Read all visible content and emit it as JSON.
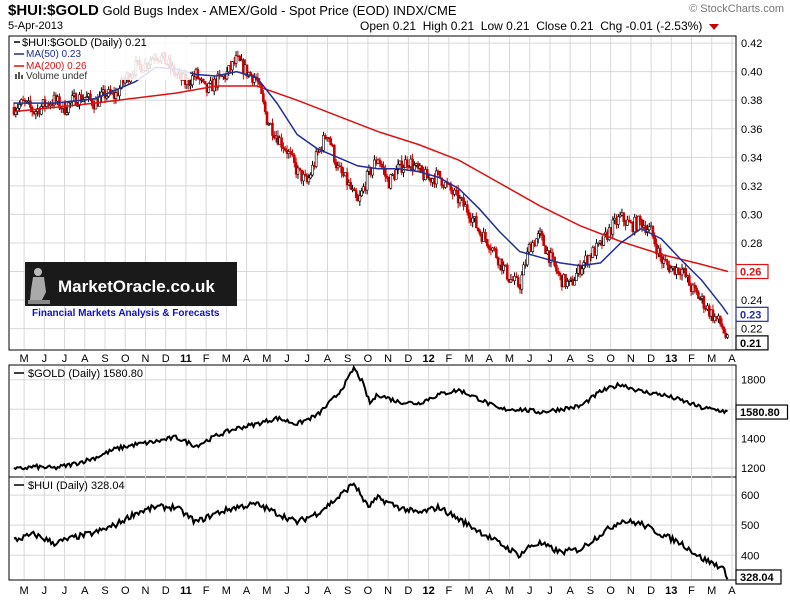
{
  "header": {
    "symbol": "$HUI:$GOLD",
    "description": "Gold Bugs Index - AMEX/Gold - Spot Price (EOD)",
    "exchange": "INDX/CME",
    "credit": "© StockCharts.com",
    "date": "5-Apr-2013",
    "open_label": "Open",
    "open": "0.21",
    "high_label": "High",
    "high": "0.21",
    "low_label": "Low",
    "low": "0.21",
    "close_label": "Close",
    "close": "0.21",
    "chg_label": "Chg",
    "chg": "-0.01 (-2.53%)"
  },
  "legend": {
    "main": "$HUI:$GOLD (Daily) 0.21",
    "ma50": "MA(50) 0.23",
    "ma200": "MA(200) 0.26",
    "volume": "Volume undef"
  },
  "watermark": {
    "name": "MarketOracle.co.uk",
    "tagline": "Financial Markets Analysis & Forecasts"
  },
  "month_labels": [
    "M",
    "J",
    "J",
    "A",
    "S",
    "O",
    "N",
    "D",
    "11",
    "F",
    "M",
    "A",
    "M",
    "J",
    "J",
    "A",
    "S",
    "O",
    "N",
    "D",
    "12",
    "F",
    "M",
    "A",
    "M",
    "J",
    "J",
    "A",
    "S",
    "O",
    "N",
    "D",
    "13",
    "F",
    "M",
    "A"
  ],
  "colors": {
    "up": "#000000",
    "down": "#cc0000",
    "ma50": "#1f2f99",
    "ma200": "#dd1111",
    "grid": "#d8d8d8",
    "bg": "#ffffff"
  },
  "chart_data": [
    {
      "type": "candlestick",
      "title": "$HUI:$GOLD (Daily) 0.21",
      "x_range": [
        "2010-05-01",
        "2013-04-05"
      ],
      "y_axis": {
        "ticks": [
          0.22,
          0.24,
          0.26,
          0.28,
          0.3,
          0.32,
          0.34,
          0.36,
          0.38,
          0.4,
          0.42
        ],
        "ylim": [
          0.205,
          0.425
        ]
      },
      "price_path": [
        {
          "t": 0.0,
          "v": 0.375
        },
        {
          "t": 0.5,
          "v": 0.378
        },
        {
          "t": 1.0,
          "v": 0.372
        },
        {
          "t": 1.5,
          "v": 0.377
        },
        {
          "t": 2.0,
          "v": 0.38
        },
        {
          "t": 2.5,
          "v": 0.374
        },
        {
          "t": 3.0,
          "v": 0.381
        },
        {
          "t": 3.5,
          "v": 0.382
        },
        {
          "t": 4.0,
          "v": 0.378
        },
        {
          "t": 4.5,
          "v": 0.384
        },
        {
          "t": 5.0,
          "v": 0.383
        },
        {
          "t": 5.5,
          "v": 0.395
        },
        {
          "t": 6.0,
          "v": 0.403
        },
        {
          "t": 6.5,
          "v": 0.405
        },
        {
          "t": 7.0,
          "v": 0.413
        },
        {
          "t": 7.5,
          "v": 0.407
        },
        {
          "t": 8.0,
          "v": 0.398
        },
        {
          "t": 8.5,
          "v": 0.392
        },
        {
          "t": 9.0,
          "v": 0.398
        },
        {
          "t": 9.5,
          "v": 0.386
        },
        {
          "t": 10.0,
          "v": 0.393
        },
        {
          "t": 10.5,
          "v": 0.398
        },
        {
          "t": 11.0,
          "v": 0.408
        },
        {
          "t": 11.5,
          "v": 0.4
        },
        {
          "t": 12.0,
          "v": 0.395
        },
        {
          "t": 12.5,
          "v": 0.367
        },
        {
          "t": 13.0,
          "v": 0.355
        },
        {
          "t": 13.5,
          "v": 0.345
        },
        {
          "t": 14.0,
          "v": 0.33
        },
        {
          "t": 14.5,
          "v": 0.322
        },
        {
          "t": 15.0,
          "v": 0.342
        },
        {
          "t": 15.5,
          "v": 0.358
        },
        {
          "t": 16.0,
          "v": 0.332
        },
        {
          "t": 16.5,
          "v": 0.322
        },
        {
          "t": 17.0,
          "v": 0.307
        },
        {
          "t": 17.5,
          "v": 0.327
        },
        {
          "t": 18.0,
          "v": 0.34
        },
        {
          "t": 18.5,
          "v": 0.322
        },
        {
          "t": 19.0,
          "v": 0.332
        },
        {
          "t": 19.5,
          "v": 0.338
        },
        {
          "t": 20.0,
          "v": 0.33
        },
        {
          "t": 20.5,
          "v": 0.325
        },
        {
          "t": 21.0,
          "v": 0.327
        },
        {
          "t": 21.5,
          "v": 0.318
        },
        {
          "t": 22.0,
          "v": 0.31
        },
        {
          "t": 22.5,
          "v": 0.302
        },
        {
          "t": 23.0,
          "v": 0.288
        },
        {
          "t": 23.5,
          "v": 0.28
        },
        {
          "t": 24.0,
          "v": 0.268
        },
        {
          "t": 24.5,
          "v": 0.255
        },
        {
          "t": 25.0,
          "v": 0.25
        },
        {
          "t": 25.5,
          "v": 0.278
        },
        {
          "t": 26.0,
          "v": 0.285
        },
        {
          "t": 26.5,
          "v": 0.27
        },
        {
          "t": 27.0,
          "v": 0.255
        },
        {
          "t": 27.5,
          "v": 0.25
        },
        {
          "t": 28.0,
          "v": 0.263
        },
        {
          "t": 28.5,
          "v": 0.272
        },
        {
          "t": 29.0,
          "v": 0.278
        },
        {
          "t": 29.5,
          "v": 0.29
        },
        {
          "t": 30.0,
          "v": 0.298
        },
        {
          "t": 30.5,
          "v": 0.292
        },
        {
          "t": 31.0,
          "v": 0.295
        },
        {
          "t": 31.5,
          "v": 0.288
        },
        {
          "t": 32.0,
          "v": 0.268
        },
        {
          "t": 32.5,
          "v": 0.262
        },
        {
          "t": 33.0,
          "v": 0.262
        },
        {
          "t": 33.5,
          "v": 0.248
        },
        {
          "t": 34.0,
          "v": 0.24
        },
        {
          "t": 34.5,
          "v": 0.23
        },
        {
          "t": 35.0,
          "v": 0.222
        },
        {
          "t": 35.3,
          "v": 0.21
        }
      ],
      "ma50_path": [
        {
          "t": 0.0,
          "v": 0.378
        },
        {
          "t": 2.0,
          "v": 0.378
        },
        {
          "t": 4.0,
          "v": 0.381
        },
        {
          "t": 6.0,
          "v": 0.393
        },
        {
          "t": 7.0,
          "v": 0.403
        },
        {
          "t": 8.0,
          "v": 0.402
        },
        {
          "t": 9.0,
          "v": 0.398
        },
        {
          "t": 10.0,
          "v": 0.397
        },
        {
          "t": 11.0,
          "v": 0.4
        },
        {
          "t": 12.0,
          "v": 0.396
        },
        {
          "t": 13.0,
          "v": 0.378
        },
        {
          "t": 14.0,
          "v": 0.356
        },
        {
          "t": 15.0,
          "v": 0.346
        },
        {
          "t": 16.0,
          "v": 0.34
        },
        {
          "t": 17.0,
          "v": 0.334
        },
        {
          "t": 18.0,
          "v": 0.332
        },
        {
          "t": 19.0,
          "v": 0.332
        },
        {
          "t": 20.0,
          "v": 0.33
        },
        {
          "t": 21.0,
          "v": 0.326
        },
        {
          "t": 22.0,
          "v": 0.318
        },
        {
          "t": 23.0,
          "v": 0.304
        },
        {
          "t": 24.0,
          "v": 0.288
        },
        {
          "t": 25.0,
          "v": 0.274
        },
        {
          "t": 26.0,
          "v": 0.27
        },
        {
          "t": 27.0,
          "v": 0.266
        },
        {
          "t": 28.0,
          "v": 0.264
        },
        {
          "t": 29.0,
          "v": 0.266
        },
        {
          "t": 30.0,
          "v": 0.28
        },
        {
          "t": 31.0,
          "v": 0.29
        },
        {
          "t": 32.0,
          "v": 0.283
        },
        {
          "t": 33.0,
          "v": 0.268
        },
        {
          "t": 34.0,
          "v": 0.254
        },
        {
          "t": 35.0,
          "v": 0.236
        },
        {
          "t": 35.3,
          "v": 0.23
        }
      ],
      "ma200_path": [
        {
          "t": 0.0,
          "v": 0.372
        },
        {
          "t": 4.0,
          "v": 0.378
        },
        {
          "t": 8.0,
          "v": 0.385
        },
        {
          "t": 10.0,
          "v": 0.39
        },
        {
          "t": 12.0,
          "v": 0.39
        },
        {
          "t": 14.0,
          "v": 0.38
        },
        {
          "t": 16.0,
          "v": 0.369
        },
        {
          "t": 18.0,
          "v": 0.358
        },
        {
          "t": 20.0,
          "v": 0.349
        },
        {
          "t": 22.0,
          "v": 0.338
        },
        {
          "t": 24.0,
          "v": 0.322
        },
        {
          "t": 26.0,
          "v": 0.306
        },
        {
          "t": 28.0,
          "v": 0.292
        },
        {
          "t": 30.0,
          "v": 0.281
        },
        {
          "t": 32.0,
          "v": 0.272
        },
        {
          "t": 34.0,
          "v": 0.265
        },
        {
          "t": 35.3,
          "v": 0.26
        }
      ],
      "tags": [
        {
          "label": "0.26",
          "value": 0.26,
          "color": "#dd1111"
        },
        {
          "label": "0.23",
          "value": 0.23,
          "color": "#1f2f99"
        },
        {
          "label": "0.21",
          "value": 0.21,
          "color": "#000000"
        }
      ]
    },
    {
      "type": "line",
      "title": "$GOLD (Daily) 1580.80",
      "y_axis": {
        "ticks": [
          1200,
          1400,
          1600,
          1800
        ],
        "ylim": [
          1140,
          1900
        ]
      },
      "path": [
        {
          "t": 0.0,
          "v": 1190
        },
        {
          "t": 1.0,
          "v": 1210
        },
        {
          "t": 2.0,
          "v": 1200
        },
        {
          "t": 3.0,
          "v": 1230
        },
        {
          "t": 4.0,
          "v": 1270
        },
        {
          "t": 5.0,
          "v": 1330
        },
        {
          "t": 6.0,
          "v": 1360
        },
        {
          "t": 7.0,
          "v": 1380
        },
        {
          "t": 8.0,
          "v": 1410
        },
        {
          "t": 9.0,
          "v": 1350
        },
        {
          "t": 10.0,
          "v": 1420
        },
        {
          "t": 11.0,
          "v": 1470
        },
        {
          "t": 12.0,
          "v": 1500
        },
        {
          "t": 13.0,
          "v": 1540
        },
        {
          "t": 14.0,
          "v": 1500
        },
        {
          "t": 15.0,
          "v": 1560
        },
        {
          "t": 16.0,
          "v": 1700
        },
        {
          "t": 16.5,
          "v": 1800
        },
        {
          "t": 16.8,
          "v": 1880
        },
        {
          "t": 17.2,
          "v": 1790
        },
        {
          "t": 17.6,
          "v": 1640
        },
        {
          "t": 18.0,
          "v": 1700
        },
        {
          "t": 19.0,
          "v": 1650
        },
        {
          "t": 20.0,
          "v": 1640
        },
        {
          "t": 21.0,
          "v": 1700
        },
        {
          "t": 22.0,
          "v": 1730
        },
        {
          "t": 23.0,
          "v": 1670
        },
        {
          "t": 24.0,
          "v": 1600
        },
        {
          "t": 25.0,
          "v": 1600
        },
        {
          "t": 26.0,
          "v": 1580
        },
        {
          "t": 27.0,
          "v": 1600
        },
        {
          "t": 28.0,
          "v": 1620
        },
        {
          "t": 29.0,
          "v": 1720
        },
        {
          "t": 30.0,
          "v": 1770
        },
        {
          "t": 31.0,
          "v": 1720
        },
        {
          "t": 32.0,
          "v": 1700
        },
        {
          "t": 33.0,
          "v": 1660
        },
        {
          "t": 34.0,
          "v": 1610
        },
        {
          "t": 35.0,
          "v": 1590
        },
        {
          "t": 35.3,
          "v": 1580.8
        }
      ],
      "tag": {
        "label": "1580.80",
        "value": 1580.8
      }
    },
    {
      "type": "line",
      "title": "$HUI (Daily) 328.04",
      "y_axis": {
        "ticks": [
          400,
          500,
          600
        ],
        "ylim": [
          318,
          660
        ]
      },
      "path": [
        {
          "t": 0.0,
          "v": 450
        },
        {
          "t": 1.0,
          "v": 470
        },
        {
          "t": 2.0,
          "v": 440
        },
        {
          "t": 3.0,
          "v": 460
        },
        {
          "t": 4.0,
          "v": 475
        },
        {
          "t": 5.0,
          "v": 500
        },
        {
          "t": 6.0,
          "v": 540
        },
        {
          "t": 7.0,
          "v": 560
        },
        {
          "t": 8.0,
          "v": 560
        },
        {
          "t": 9.0,
          "v": 510
        },
        {
          "t": 10.0,
          "v": 540
        },
        {
          "t": 11.0,
          "v": 560
        },
        {
          "t": 12.0,
          "v": 570
        },
        {
          "t": 13.0,
          "v": 540
        },
        {
          "t": 14.0,
          "v": 510
        },
        {
          "t": 15.0,
          "v": 540
        },
        {
          "t": 16.0,
          "v": 590
        },
        {
          "t": 16.8,
          "v": 640
        },
        {
          "t": 17.5,
          "v": 560
        },
        {
          "t": 18.0,
          "v": 590
        },
        {
          "t": 19.0,
          "v": 560
        },
        {
          "t": 20.0,
          "v": 540
        },
        {
          "t": 21.0,
          "v": 560
        },
        {
          "t": 22.0,
          "v": 520
        },
        {
          "t": 23.0,
          "v": 480
        },
        {
          "t": 24.0,
          "v": 440
        },
        {
          "t": 25.0,
          "v": 400
        },
        {
          "t": 25.5,
          "v": 430
        },
        {
          "t": 26.0,
          "v": 440
        },
        {
          "t": 27.0,
          "v": 410
        },
        {
          "t": 28.0,
          "v": 420
        },
        {
          "t": 29.0,
          "v": 470
        },
        {
          "t": 30.0,
          "v": 515
        },
        {
          "t": 31.0,
          "v": 505
        },
        {
          "t": 32.0,
          "v": 470
        },
        {
          "t": 33.0,
          "v": 440
        },
        {
          "t": 34.0,
          "v": 390
        },
        {
          "t": 35.0,
          "v": 360
        },
        {
          "t": 35.3,
          "v": 328.04
        }
      ],
      "tag": {
        "label": "328.04",
        "value": 328.04
      }
    }
  ]
}
